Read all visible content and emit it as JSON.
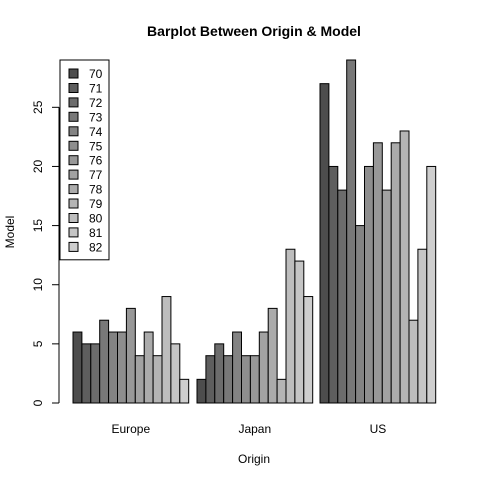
{
  "chart_data": {
    "type": "bar",
    "title": "Barplot Between Origin & Model",
    "xlabel": "Origin",
    "ylabel": "Model",
    "categories": [
      "Europe",
      "Japan",
      "US"
    ],
    "yticks": [
      0,
      5,
      10,
      15,
      20,
      25
    ],
    "ylim": [
      0,
      29
    ],
    "legend_placement": "top-left",
    "series": [
      {
        "name": "70",
        "color": "#4d4d4d",
        "values": [
          6,
          2,
          27
        ]
      },
      {
        "name": "71",
        "color": "#5e5e5e",
        "values": [
          5,
          4,
          20
        ]
      },
      {
        "name": "72",
        "color": "#6c6c6c",
        "values": [
          5,
          5,
          18
        ]
      },
      {
        "name": "73",
        "color": "#787878",
        "values": [
          7,
          4,
          29
        ]
      },
      {
        "name": "74",
        "color": "#838383",
        "values": [
          6,
          6,
          15
        ]
      },
      {
        "name": "75",
        "color": "#8e8e8e",
        "values": [
          6,
          4,
          20
        ]
      },
      {
        "name": "76",
        "color": "#989898",
        "values": [
          8,
          4,
          22
        ]
      },
      {
        "name": "77",
        "color": "#a2a2a2",
        "values": [
          4,
          6,
          18
        ]
      },
      {
        "name": "78",
        "color": "#ababab",
        "values": [
          6,
          8,
          22
        ]
      },
      {
        "name": "79",
        "color": "#b4b4b4",
        "values": [
          4,
          2,
          23
        ]
      },
      {
        "name": "80",
        "color": "#bdbdbd",
        "values": [
          9,
          13,
          7
        ]
      },
      {
        "name": "81",
        "color": "#c5c5c5",
        "values": [
          5,
          12,
          13
        ]
      },
      {
        "name": "82",
        "color": "#cecece",
        "values": [
          2,
          9,
          20
        ]
      }
    ]
  }
}
